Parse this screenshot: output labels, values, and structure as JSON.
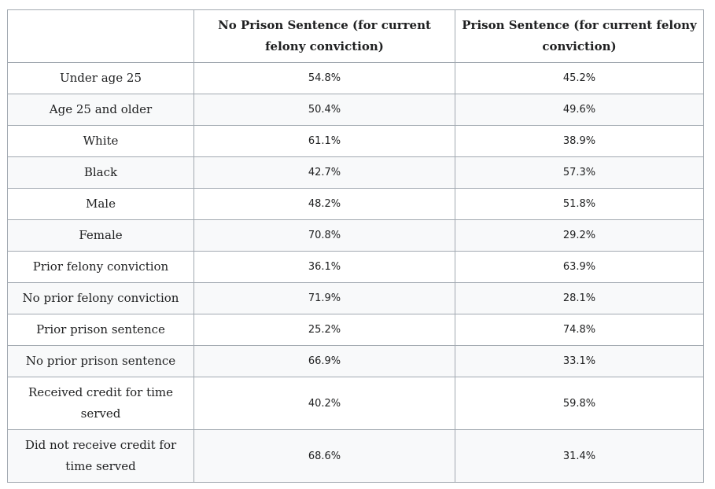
{
  "table": {
    "headers": [
      "",
      "No Prison Sentence (for current felony conviction)",
      "Prison Sentence (for current felony conviction)"
    ],
    "rows": [
      {
        "label": "Under age 25",
        "no_prison": "54.8%",
        "prison": "45.2%"
      },
      {
        "label": "Age 25 and older",
        "no_prison": "50.4%",
        "prison": "49.6%"
      },
      {
        "label": "White",
        "no_prison": "61.1%",
        "prison": "38.9%"
      },
      {
        "label": "Black",
        "no_prison": "42.7%",
        "prison": "57.3%"
      },
      {
        "label": "Male",
        "no_prison": "48.2%",
        "prison": "51.8%"
      },
      {
        "label": "Female",
        "no_prison": "70.8%",
        "prison": "29.2%"
      },
      {
        "label": "Prior felony conviction",
        "no_prison": "36.1%",
        "prison": "63.9%"
      },
      {
        "label": "No prior felony conviction",
        "no_prison": "71.9%",
        "prison": "28.1%"
      },
      {
        "label": "Prior prison sentence",
        "no_prison": "25.2%",
        "prison": "74.8%"
      },
      {
        "label": "No prior prison sentence",
        "no_prison": "66.9%",
        "prison": "33.1%"
      },
      {
        "label": "Received credit for time served",
        "no_prison": "40.2%",
        "prison": "59.8%"
      },
      {
        "label": "Did not receive credit for time served",
        "no_prison": "68.6%",
        "prison": "31.4%"
      }
    ]
  }
}
